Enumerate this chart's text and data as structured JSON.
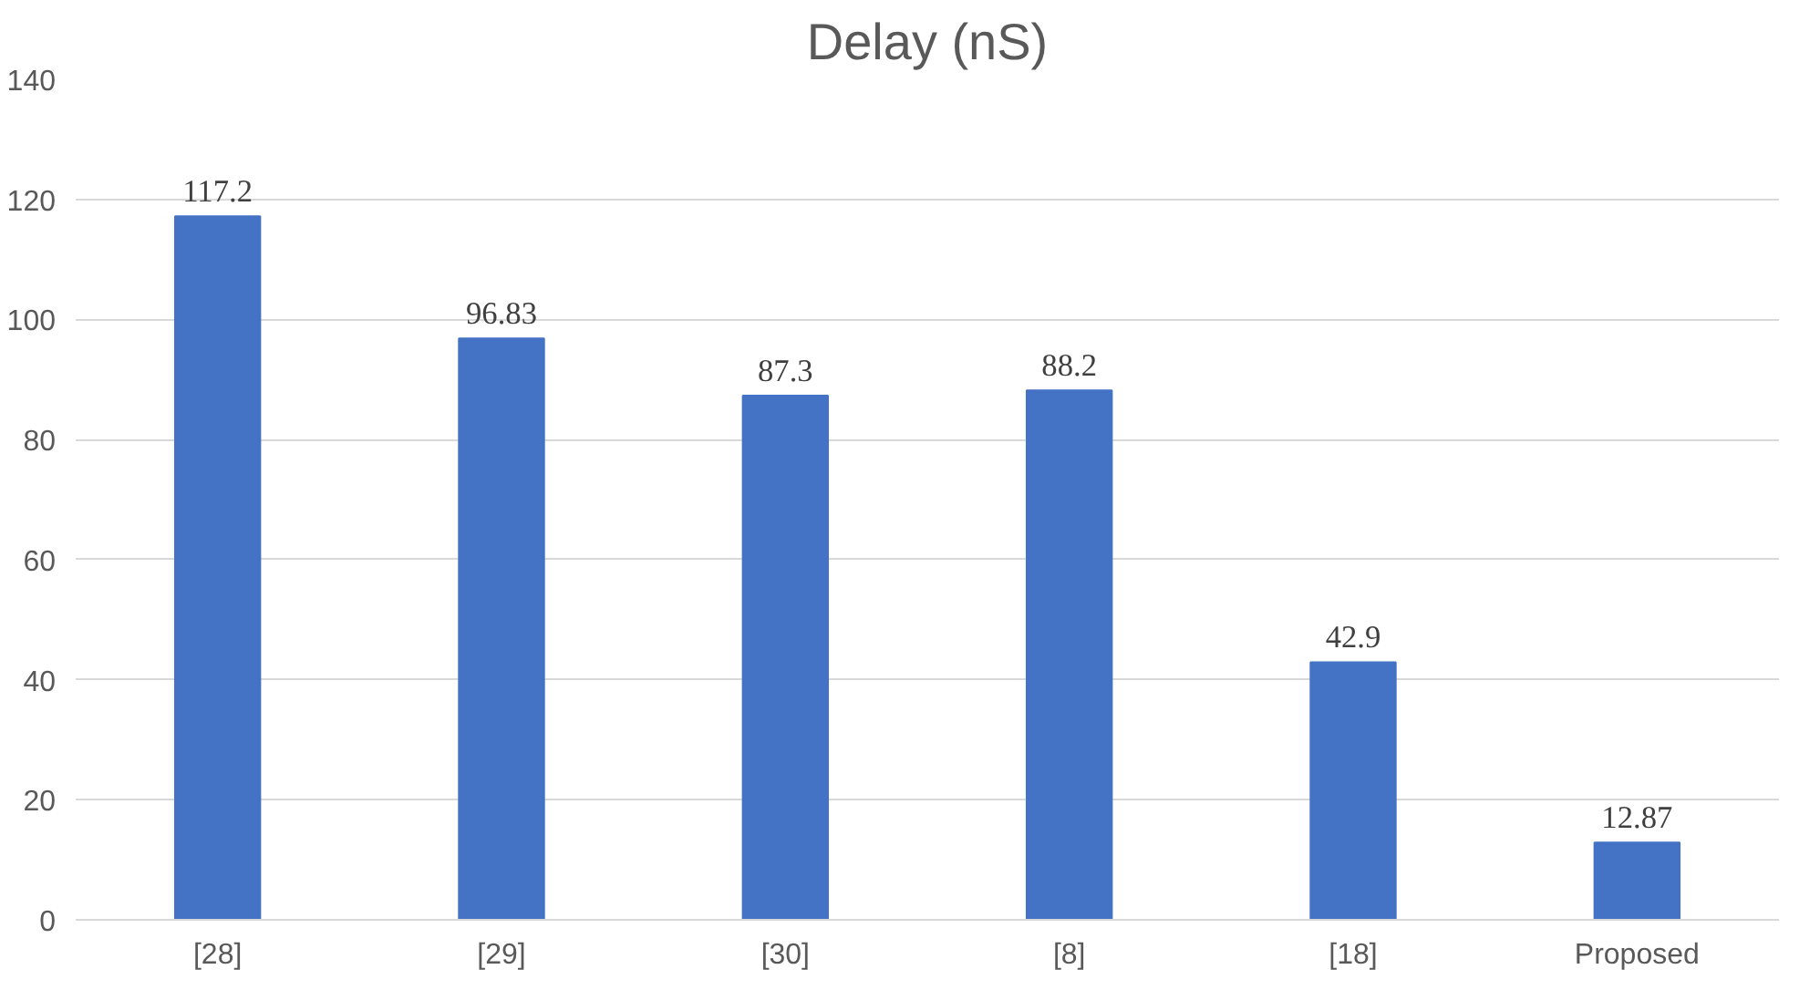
{
  "chart_data": {
    "type": "bar",
    "title": "Delay (nS)",
    "categories": [
      "[28]",
      "[29]",
      "[30]",
      "[8]",
      "[18]",
      "Proposed"
    ],
    "values": [
      117.2,
      96.83,
      87.3,
      88.2,
      42.9,
      12.87
    ],
    "color": "#4472c4",
    "ylim": [
      0,
      140
    ],
    "yticks": [
      0,
      20,
      40,
      60,
      80,
      100,
      120,
      140
    ],
    "grid": "y",
    "data_labels": true
  }
}
